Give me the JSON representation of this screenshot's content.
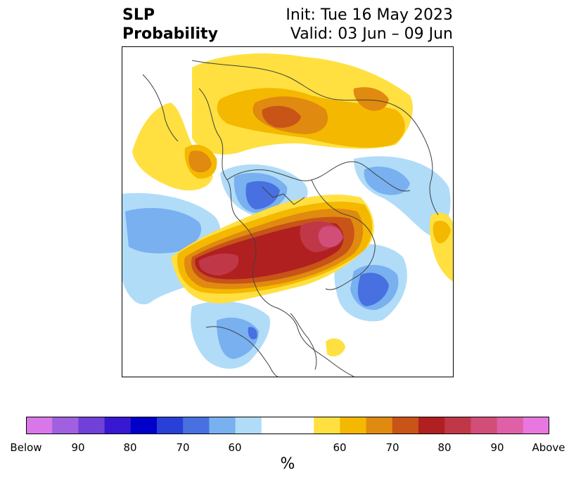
{
  "title": {
    "left_line1": "SLP",
    "left_line2": "Probability",
    "right_line1": "Init: Tue 16 May 2023",
    "right_line2": "Valid: 03 Jun – 09 Jun"
  },
  "colorbar": {
    "unit": "%",
    "colors": [
      "#d878e8",
      "#a060e0",
      "#7040d8",
      "#3818d0",
      "#0000c8",
      "#2840d8",
      "#4870e0",
      "#78b0f0",
      "#b0dcf8",
      "#ffffff",
      "#ffe040",
      "#f4b800",
      "#e08a10",
      "#c85418",
      "#b02020",
      "#c03848",
      "#d04e78",
      "#e060a8",
      "#e878e0"
    ],
    "tick_labels": [
      "Below",
      "90",
      "80",
      "70",
      "60",
      "60",
      "70",
      "80",
      "90",
      "Above"
    ]
  },
  "map": {
    "region": "Northern Hemisphere polar stereographic",
    "colors": {
      "below_60": "#b0dcf8",
      "below_70": "#78b0f0",
      "below_80": "#4870e0",
      "above_60": "#ffe040",
      "above_70": "#f4b800",
      "above_80": "#e08a10",
      "above_85": "#c85418",
      "above_90": "#b02020",
      "above_95": "#c03848",
      "above_high": "#d04e78",
      "coastline": "#404040"
    }
  }
}
